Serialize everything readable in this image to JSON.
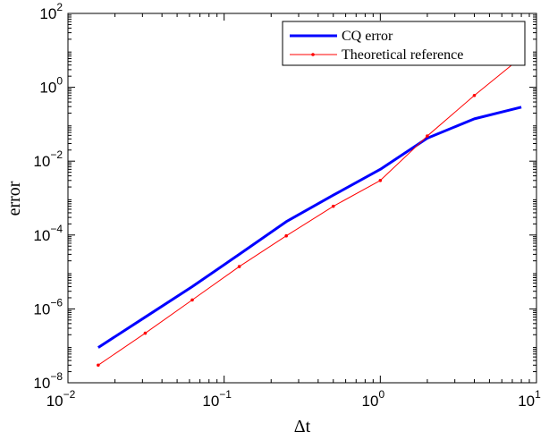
{
  "chart_data": {
    "type": "line",
    "xscale": "log",
    "yscale": "log",
    "xlim": [
      0.01,
      10
    ],
    "ylim": [
      1e-08,
      100
    ],
    "xlabel": "Δt",
    "ylabel": "error",
    "x_ticks": [
      {
        "base": "10",
        "exp": "−2",
        "value": 0.01
      },
      {
        "base": "10",
        "exp": "−1",
        "value": 0.1
      },
      {
        "base": "10",
        "exp": "0",
        "value": 1
      },
      {
        "base": "10",
        "exp": "1",
        "value": 10
      }
    ],
    "y_ticks": [
      {
        "base": "10",
        "exp": "−8",
        "value": 1e-08
      },
      {
        "base": "10",
        "exp": "−6",
        "value": 1e-06
      },
      {
        "base": "10",
        "exp": "−4",
        "value": 0.0001
      },
      {
        "base": "10",
        "exp": "−2",
        "value": 0.01
      },
      {
        "base": "10",
        "exp": "0",
        "value": 1
      },
      {
        "base": "10",
        "exp": "2",
        "value": 100
      }
    ],
    "legend_position": "top-right",
    "series": [
      {
        "name": "CQ error",
        "color": "#0000ff",
        "style": "thick-line",
        "x": [
          0.015625,
          0.03125,
          0.0625,
          0.125,
          0.25,
          0.5,
          1,
          2,
          4,
          8
        ],
        "y": [
          9e-08,
          6e-07,
          4e-06,
          3e-05,
          0.00023,
          0.0012,
          0.006,
          0.042,
          0.14,
          0.29
        ]
      },
      {
        "name": "Theoretical reference",
        "color": "#ff0000",
        "style": "thin-line-dots",
        "x": [
          0.015625,
          0.03125,
          0.0625,
          0.125,
          0.25,
          0.5,
          1,
          2,
          4,
          8
        ],
        "y": [
          3e-08,
          2.2e-07,
          1.75e-06,
          1.4e-05,
          9.5e-05,
          0.0006,
          0.003,
          0.048,
          0.6,
          6.5
        ]
      }
    ]
  }
}
